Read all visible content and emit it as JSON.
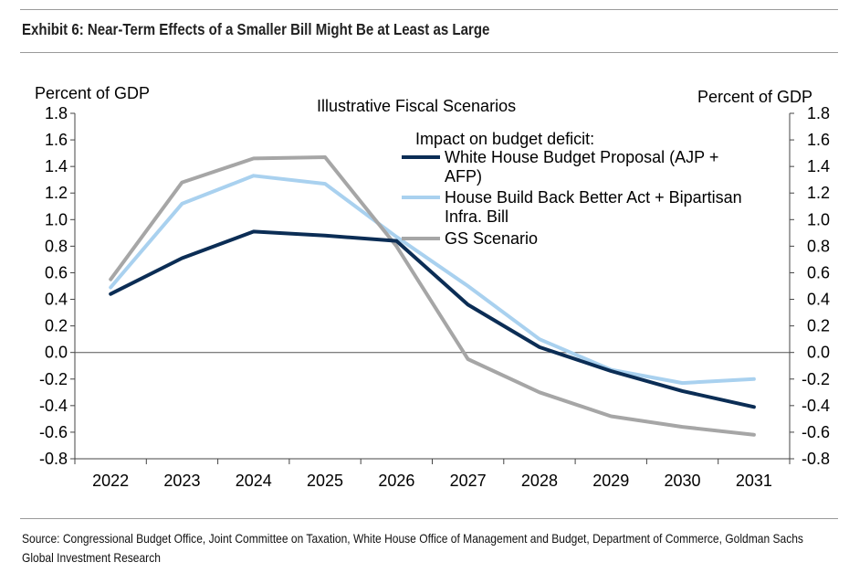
{
  "exhibit_title": "Exhibit 6: Near-Term Effects of a Smaller Bill Might Be at Least as Large",
  "source_note": "Source: Congressional Budget Office, Joint Committee on Taxation, White House Office of Management and Budget, Department of Commerce, Goldman Sachs Global Investment Research",
  "chart_data": {
    "type": "line",
    "title": "Illustrative Fiscal Scenarios",
    "ylabel_left": "Percent of GDP",
    "ylabel_right": "Percent of GDP",
    "legend_title": "Impact on budget deficit:",
    "legend_position": "top-right",
    "grid": false,
    "ylim": [
      -0.8,
      1.8
    ],
    "yticks": [
      "1.8",
      "1.6",
      "1.4",
      "1.2",
      "1.0",
      "0.8",
      "0.6",
      "0.4",
      "0.2",
      "0.0",
      "-0.2",
      "-0.4",
      "-0.6",
      "-0.8"
    ],
    "x": [
      "2022",
      "2023",
      "2024",
      "2025",
      "2026",
      "2027",
      "2028",
      "2029",
      "2030",
      "2031"
    ],
    "series": [
      {
        "name": "White House Budget Proposal (AJP + AFP)",
        "legend_lines": [
          "White House Budget Proposal (AJP +",
          "AFP)"
        ],
        "color": "#0b2d55",
        "values": [
          0.44,
          0.71,
          0.91,
          0.88,
          0.84,
          0.36,
          0.04,
          -0.14,
          -0.29,
          -0.41
        ]
      },
      {
        "name": "House Build Back Better Act + Bipartisan Infra. Bill",
        "legend_lines": [
          "House Build Back Better Act + Bipartisan",
          "Infra. Bill"
        ],
        "color": "#a9d1ef",
        "values": [
          0.49,
          1.12,
          1.33,
          1.27,
          0.87,
          0.5,
          0.1,
          -0.13,
          -0.23,
          -0.2
        ]
      },
      {
        "name": "GS Scenario",
        "legend_lines": [
          "GS Scenario"
        ],
        "color": "#a6a6a6",
        "values": [
          0.55,
          1.28,
          1.46,
          1.47,
          0.8,
          -0.05,
          -0.3,
          -0.48,
          -0.56,
          -0.62
        ]
      }
    ]
  }
}
